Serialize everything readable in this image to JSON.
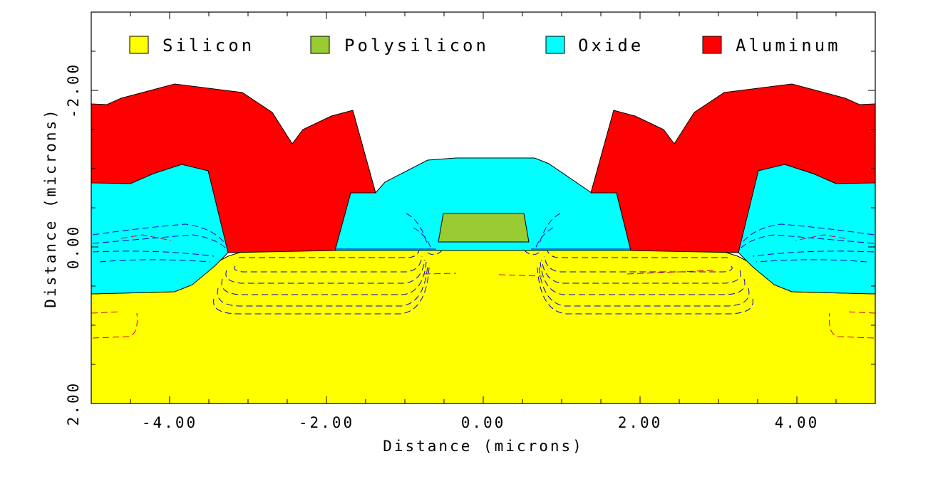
{
  "legend": [
    {
      "label": "Silicon",
      "color": "#ffff00"
    },
    {
      "label": "Polysilicon",
      "color": "#99cc33"
    },
    {
      "label": "Oxide",
      "color": "#00ffff"
    },
    {
      "label": "Aluminum",
      "color": "#ff0000"
    }
  ],
  "x_axis": {
    "title": "Distance (microns)",
    "ticks": [
      {
        "value": -4,
        "label": "-4.00"
      },
      {
        "value": -2,
        "label": "-2.00"
      },
      {
        "value": 0,
        "label": "0.00"
      },
      {
        "value": 2,
        "label": "2.00"
      },
      {
        "value": 4,
        "label": "4.00"
      }
    ],
    "range": [
      -5,
      5
    ]
  },
  "y_axis": {
    "title": "Distance (microns)",
    "ticks": [
      {
        "value": -2,
        "label": "-2.00"
      },
      {
        "value": 0,
        "label": "0.00"
      },
      {
        "value": 2,
        "label": "2.00"
      }
    ],
    "range": [
      -3,
      2
    ]
  },
  "colors": {
    "silicon": "#ffff00",
    "polysilicon": "#99cc33",
    "oxide": "#00ffff",
    "aluminum": "#ff0000",
    "contour_blue": "#0000cc",
    "contour_red": "#cc0033"
  }
}
